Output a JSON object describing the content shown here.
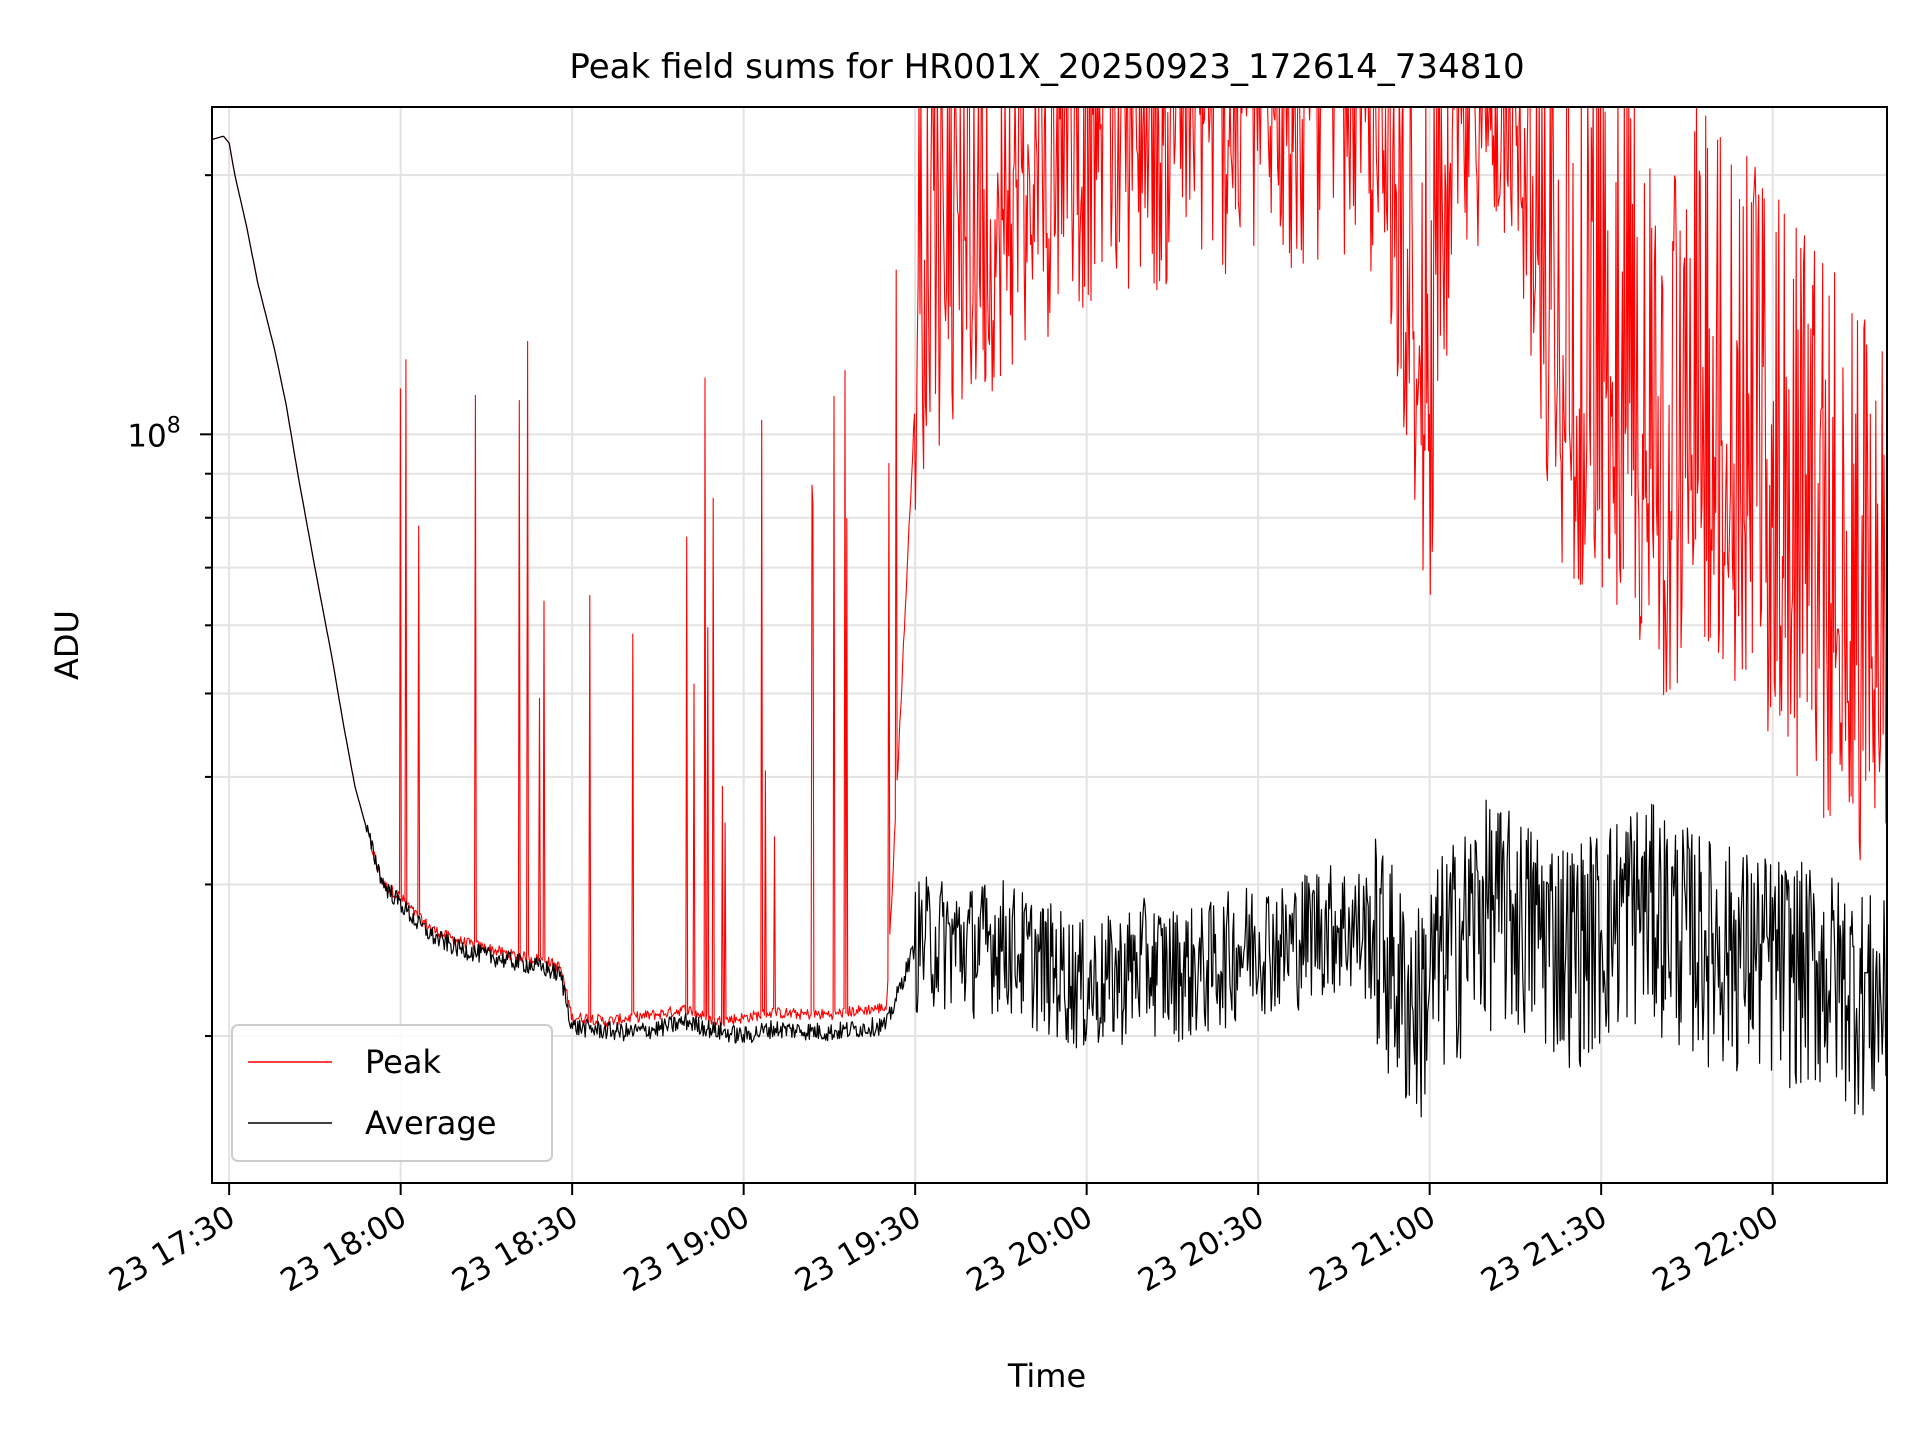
{
  "chart_data": {
    "type": "line",
    "title": "Peak field sums for HR001X_20250923_172614_734810",
    "xlabel": "Time",
    "ylabel": "ADU",
    "yscale": "log",
    "ylim": [
      13500000,
      240000000
    ],
    "xlim_minutes": [
      -3,
      290
    ],
    "grid": true,
    "legend_position": "lower-left",
    "x_ticks": [
      {
        "minutes": 0,
        "label": "23 17:30"
      },
      {
        "minutes": 30,
        "label": "23 18:00"
      },
      {
        "minutes": 60,
        "label": "23 18:30"
      },
      {
        "minutes": 90,
        "label": "23 19:00"
      },
      {
        "minutes": 120,
        "label": "23 19:30"
      },
      {
        "minutes": 150,
        "label": "23 20:00"
      },
      {
        "minutes": 180,
        "label": "23 20:30"
      },
      {
        "minutes": 210,
        "label": "23 21:00"
      },
      {
        "minutes": 240,
        "label": "23 21:30"
      },
      {
        "minutes": 270,
        "label": "23 22:00"
      }
    ],
    "y_ticks": [
      {
        "value": 100000000,
        "label_base": "10",
        "label_exp": "8"
      }
    ],
    "series": [
      {
        "name": "Peak",
        "color": "#ff0000",
        "x_minutes": [
          -3,
          -1,
          0,
          1,
          3,
          5,
          8,
          10,
          12,
          15,
          18,
          20,
          22,
          25,
          27,
          30,
          33,
          36,
          40,
          45,
          50,
          55,
          57,
          58,
          60,
          63,
          66,
          70,
          75,
          80,
          85,
          90,
          95,
          100,
          105,
          110,
          115,
          120,
          121,
          125,
          130,
          135,
          140,
          145,
          150,
          155,
          160,
          165,
          170,
          175,
          180,
          185,
          190,
          195,
          200,
          203,
          205,
          208,
          210,
          212,
          215,
          218,
          220,
          225,
          230,
          235,
          240,
          245,
          250,
          255,
          260,
          265,
          270,
          275,
          280,
          285,
          290
        ],
        "values": [
          220000000,
          222000000,
          218000000,
          200000000,
          175000000,
          150000000,
          125000000,
          108000000,
          90000000,
          70000000,
          55000000,
          46000000,
          39000000,
          33000000,
          30000000,
          29000000,
          27500000,
          26500000,
          25800000,
          25300000,
          24800000,
          24500000,
          24200000,
          24000000,
          21000000,
          21000000,
          20800000,
          21000000,
          21200000,
          21500000,
          20800000,
          21000000,
          21300000,
          21200000,
          21200000,
          21400000,
          21600000,
          110000000,
          125000000,
          140000000,
          150000000,
          165000000,
          175000000,
          190000000,
          200000000,
          215000000,
          205000000,
          210000000,
          225000000,
          215000000,
          220000000,
          215000000,
          225000000,
          230000000,
          210000000,
          190000000,
          150000000,
          100000000,
          90000000,
          150000000,
          200000000,
          235000000,
          240000000,
          230000000,
          120000000,
          90000000,
          95000000,
          85000000,
          70000000,
          75000000,
          80000000,
          70000000,
          60000000,
          55000000,
          50000000,
          45000000,
          40000000
        ]
      },
      {
        "name": "Average",
        "color": "#000000",
        "x_minutes": [
          -3,
          -1,
          0,
          1,
          3,
          5,
          8,
          10,
          12,
          15,
          18,
          20,
          22,
          25,
          27,
          30,
          33,
          36,
          40,
          45,
          50,
          55,
          57,
          58,
          60,
          63,
          66,
          70,
          75,
          80,
          85,
          90,
          95,
          100,
          105,
          110,
          115,
          120,
          121,
          125,
          130,
          135,
          140,
          145,
          150,
          155,
          160,
          165,
          170,
          175,
          180,
          185,
          190,
          195,
          200,
          203,
          205,
          208,
          210,
          212,
          215,
          218,
          220,
          225,
          230,
          235,
          240,
          245,
          250,
          255,
          260,
          265,
          270,
          275,
          280,
          285,
          290
        ],
        "values": [
          220000000,
          222000000,
          218000000,
          200000000,
          175000000,
          150000000,
          125000000,
          108000000,
          90000000,
          70000000,
          55000000,
          46000000,
          39000000,
          33000000,
          30000000,
          28500000,
          27000000,
          26000000,
          25300000,
          24800000,
          24400000,
          24000000,
          23700000,
          23500000,
          20500000,
          20400000,
          20300000,
          20200000,
          20400000,
          20800000,
          20300000,
          20000000,
          20400000,
          20300000,
          20200000,
          20400000,
          20600000,
          25500000,
          26000000,
          26000000,
          25500000,
          26000000,
          24800000,
          24000000,
          23000000,
          23500000,
          24500000,
          24000000,
          24000000,
          25000000,
          26000000,
          25500000,
          27000000,
          27000000,
          26500000,
          25000000,
          23000000,
          22000000,
          23500000,
          25000000,
          26500000,
          28000000,
          29000000,
          28000000,
          27000000,
          26000000,
          27000000,
          29000000,
          28500000,
          27000000,
          26000000,
          25500000,
          25000000,
          24500000,
          24000000,
          23000000,
          22000000
        ]
      }
    ]
  }
}
